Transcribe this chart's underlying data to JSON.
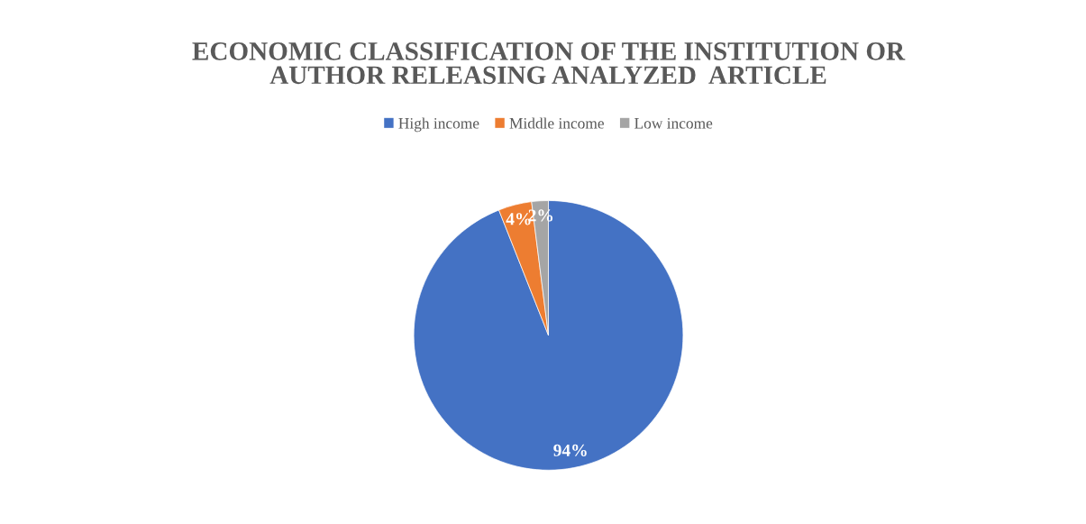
{
  "chart_data": {
    "type": "pie",
    "title": "ECONOMIC CLASSIFICATION OF THE INSTITUTION OR\nAUTHOR RELEASING ANALYZED  ARTICLE",
    "categories": [
      "High income",
      "Middle income",
      "Low income"
    ],
    "values": [
      94,
      4,
      2
    ],
    "colors": [
      "#4472c4",
      "#ed7d31",
      "#a5a5a5"
    ],
    "value_labels": [
      "94%",
      "4%",
      "2%"
    ],
    "legend": "top"
  }
}
